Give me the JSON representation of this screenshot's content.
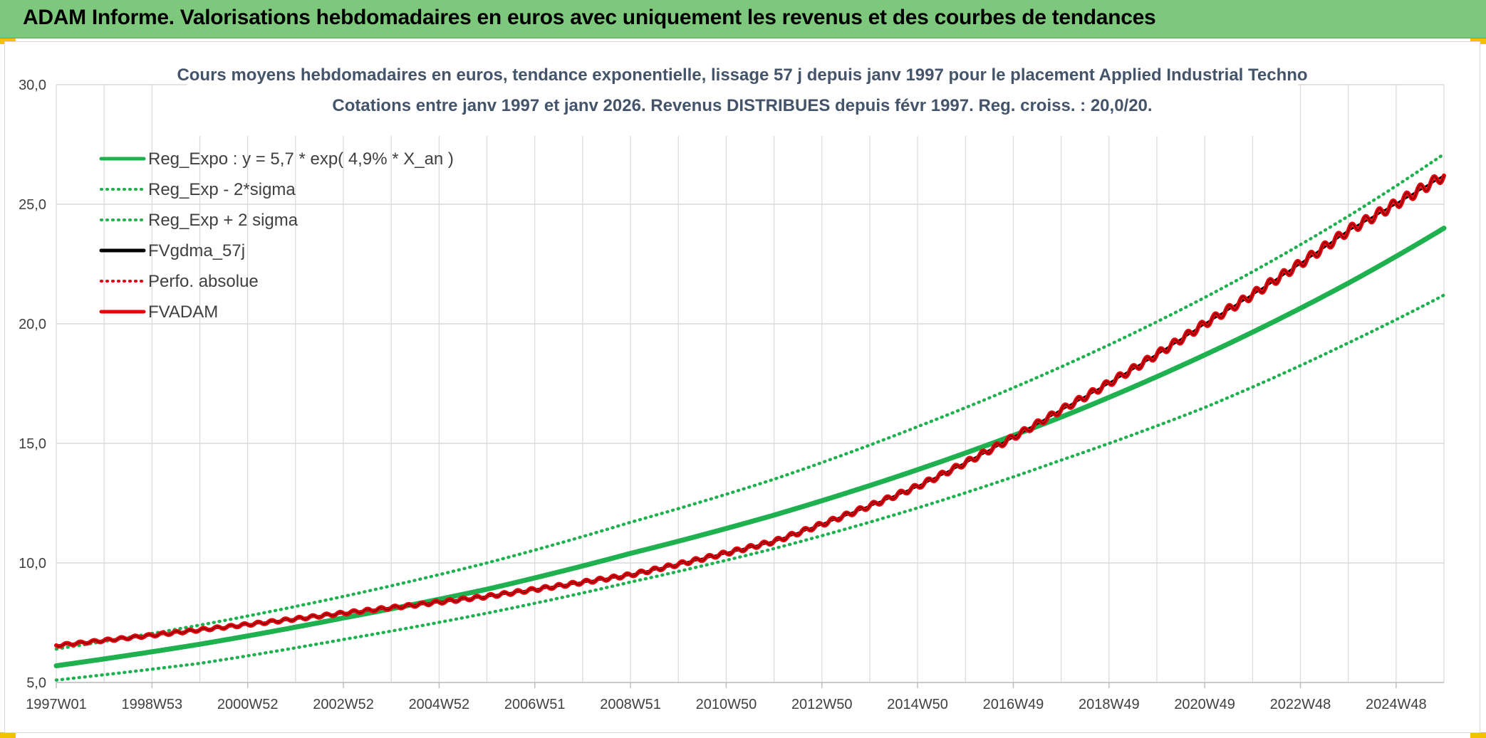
{
  "header": {
    "title": "ADAM Informe. Valorisations hebdomadaires en euros avec uniquement les revenus et des courbes de tendances"
  },
  "colors": {
    "header_bg": "#7ec87e",
    "green": "#1fb04f",
    "red": "#e8000b",
    "black": "#000000",
    "grid": "#d9d9d9",
    "title_text": "#44546a",
    "axis_text": "#404040"
  },
  "chart_data": {
    "type": "line",
    "title": "Cours moyens hebdomadaires en euros, tendance exponentielle, lissage 57 j depuis janv 1997 pour le placement Applied Industrial Techno",
    "subtitle": "Cotations entre janv 1997 et janv 2026. Revenus DISTRIBUES depuis févr 1997. Reg. croiss. : 20,0/20.",
    "xlabel": "",
    "ylabel": "",
    "ylim": [
      5,
      30
    ],
    "y_ticks": [
      "5,0",
      "10,0",
      "15,0",
      "20,0",
      "25,0",
      "30,0"
    ],
    "x_tick_labels": [
      "1997W01",
      "1998W53",
      "2000W52",
      "2002W52",
      "2004W52",
      "2006W51",
      "2008W51",
      "2010W50",
      "2012W50",
      "2014W50",
      "2016W49",
      "2018W49",
      "2020W49",
      "2022W48",
      "2024W48"
    ],
    "x_range_years": [
      1997.0,
      2026.0
    ],
    "grid": true,
    "legend_position": "top-left",
    "series": [
      {
        "name": "Reg_Expo : y = 5,7 * exp( 4,9% *  X_an )",
        "style": "solid-thick",
        "color": "#1fb04f",
        "x": [
          1997,
          2000,
          2003,
          2006,
          2009,
          2012,
          2015,
          2018,
          2021,
          2024,
          2026
        ],
        "values": [
          5.7,
          6.6,
          7.7,
          8.9,
          10.4,
          12.0,
          13.9,
          16.1,
          18.7,
          21.7,
          24.0
        ]
      },
      {
        "name": "Reg_Exp - 2*sigma",
        "style": "dotted",
        "color": "#1fb04f",
        "x": [
          1997,
          2000,
          2003,
          2006,
          2009,
          2012,
          2015,
          2018,
          2021,
          2024,
          2026
        ],
        "values": [
          5.1,
          5.8,
          6.8,
          7.9,
          9.2,
          10.6,
          12.3,
          14.3,
          16.5,
          19.2,
          21.2
        ]
      },
      {
        "name": "Reg_Exp + 2 sigma",
        "style": "dotted",
        "color": "#1fb04f",
        "x": [
          1997,
          2000,
          2003,
          2006,
          2009,
          2012,
          2015,
          2018,
          2021,
          2024,
          2026
        ],
        "values": [
          6.4,
          7.4,
          8.6,
          10.0,
          11.7,
          13.5,
          15.7,
          18.2,
          21.1,
          24.5,
          27.1
        ]
      },
      {
        "name": "FVgdma_57j",
        "style": "solid",
        "color": "#000000",
        "x": [
          1997,
          2000,
          2003,
          2006,
          2009,
          2012,
          2015,
          2018,
          2021,
          2024,
          2026
        ],
        "values": [
          6.55,
          7.2,
          7.9,
          8.6,
          9.5,
          10.9,
          13.2,
          16.4,
          20.0,
          23.9,
          26.2
        ]
      },
      {
        "name": "Perfo. absolue",
        "style": "dotted",
        "color": "#e8000b",
        "x": [],
        "values": []
      },
      {
        "name": "FVADAM",
        "style": "solid-thick",
        "color": "#e8000b",
        "x": [
          1997,
          2000,
          2003,
          2006,
          2009,
          2012,
          2015,
          2018,
          2021,
          2024,
          2026
        ],
        "values": [
          6.55,
          7.2,
          7.9,
          8.6,
          9.5,
          10.9,
          13.2,
          16.4,
          20.0,
          23.9,
          26.2
        ]
      }
    ]
  }
}
